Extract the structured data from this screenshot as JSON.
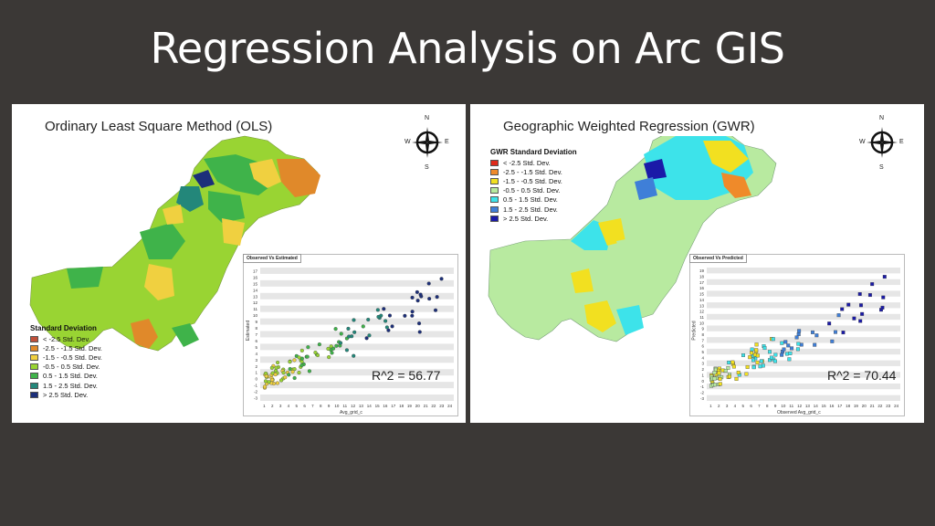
{
  "slide": {
    "title": "Regression Analysis on Arc GIS"
  },
  "left_panel": {
    "title": "Ordinary Least Square Method (OLS)",
    "compass": {
      "n": "N",
      "s": "S",
      "e": "E",
      "w": "W"
    },
    "legend": {
      "title": "Standard Deviation",
      "items": [
        {
          "label": "< -2.5 Std. Dev.",
          "color": "#c0503a"
        },
        {
          "label": "-2.5 - -1.5 Std. Dev.",
          "color": "#e0892a"
        },
        {
          "label": "-1.5 - -0.5 Std. Dev.",
          "color": "#f0d040"
        },
        {
          "label": "-0.5 - 0.5 Std. Dev.",
          "color": "#99d433"
        },
        {
          "label": "0.5 - 1.5 Std. Dev.",
          "color": "#3fb34a"
        },
        {
          "label": "1.5 - 2.5 Std. Dev.",
          "color": "#23877a"
        },
        {
          "label": "> 2.5 Std. Dev.",
          "color": "#1c2f7a"
        }
      ]
    },
    "plot": {
      "header": "Observed Vs Estimated",
      "x_label": "Avg_grid_c",
      "y_label": "Estimated",
      "r2": "R^2 = 56.77",
      "x_ticks": [
        "1",
        "2",
        "3",
        "4",
        "5",
        "6",
        "7",
        "8",
        "9",
        "10",
        "11",
        "12",
        "13",
        "14",
        "15",
        "16",
        "17",
        "18",
        "19",
        "20",
        "21",
        "22",
        "23",
        "24"
      ],
      "y_ticks": [
        "-3",
        "-2",
        "-1",
        "0",
        "1",
        "2",
        "3",
        "4",
        "5",
        "6",
        "7",
        "8",
        "9",
        "10",
        "11",
        "12",
        "13",
        "14",
        "15",
        "16",
        "17"
      ]
    }
  },
  "right_panel": {
    "title": "Geographic Weighted Regression (GWR)",
    "compass": {
      "n": "N",
      "s": "S",
      "e": "E",
      "w": "W"
    },
    "legend": {
      "title": "GWR Standard Deviation",
      "items": [
        {
          "label": "< -2.5 Std. Dev.",
          "color": "#e02a1a"
        },
        {
          "label": "-2.5 - -1.5 Std. Dev.",
          "color": "#ef8a2a"
        },
        {
          "label": "-1.5 - -0.5 Std. Dev.",
          "color": "#f2e020"
        },
        {
          "label": "-0.5 - 0.5 Std. Dev.",
          "color": "#b8eaa0"
        },
        {
          "label": "0.5 - 1.5 Std. Dev.",
          "color": "#3de3ea"
        },
        {
          "label": "1.5 - 2.5 Std. Dev.",
          "color": "#3f7fd8"
        },
        {
          "label": "> 2.5 Std. Dev.",
          "color": "#1a1aa8"
        }
      ]
    },
    "plot": {
      "header": "Observed Vs Predicted",
      "x_label": "Observed Avg_grid_c",
      "y_label": "Predicted",
      "r2": "R^2 = 70.44",
      "x_ticks": [
        "1",
        "2",
        "3",
        "4",
        "5",
        "6",
        "7",
        "8",
        "9",
        "10",
        "11",
        "12",
        "13",
        "14",
        "15",
        "16",
        "17",
        "18",
        "19",
        "20",
        "21",
        "22",
        "23",
        "24"
      ],
      "y_ticks": [
        "-3",
        "-2",
        "-1",
        "0",
        "1",
        "2",
        "3",
        "4",
        "5",
        "6",
        "7",
        "8",
        "9",
        "10",
        "11",
        "12",
        "13",
        "14",
        "15",
        "16",
        "17",
        "18",
        "19"
      ]
    }
  }
}
